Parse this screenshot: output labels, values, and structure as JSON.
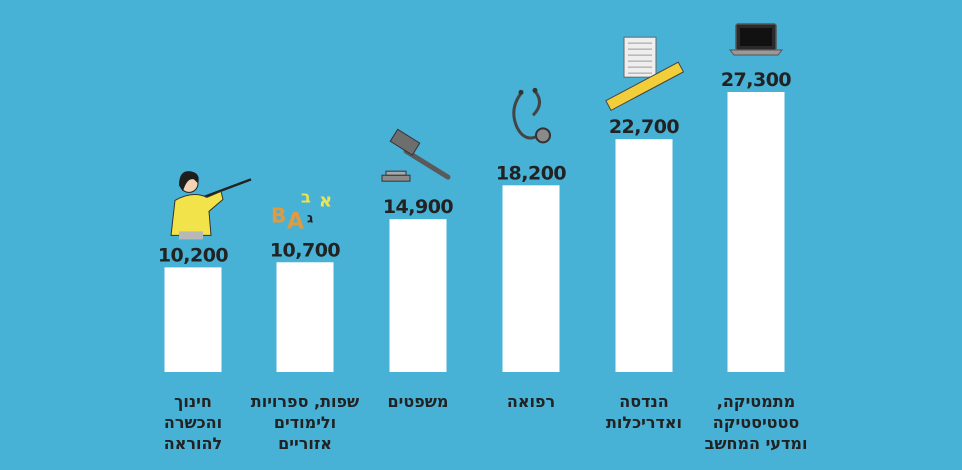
{
  "colors": {
    "background": "#48b1d6",
    "bar": "#ffffff",
    "text": "#222222"
  },
  "chart_data": {
    "type": "bar",
    "categories": [
      [
        "חינוך",
        "והכשרה",
        "להוראה"
      ],
      [
        "שפות, ספרויות",
        "ולימודים",
        "אזוריים"
      ],
      [
        "משפטים"
      ],
      [
        "רפואה"
      ],
      [
        "הנדסה",
        "ואדריכלות"
      ],
      [
        "מתמטיקה,",
        "סטטיסטיקה",
        "ומדעי המחשב"
      ]
    ],
    "values": [
      10200,
      10700,
      14900,
      18200,
      22700,
      27300
    ],
    "value_labels": [
      "10,200",
      "10,700",
      "14,900",
      "18,200",
      "22,700",
      "27,300"
    ],
    "icons": [
      "teacher-icon",
      "letters-icon",
      "gavel-icon",
      "stethoscope-icon",
      "ruler-blueprint-icon",
      "laptop-icon"
    ],
    "ylim": [
      0,
      27300
    ],
    "grid": false,
    "legend": "none"
  }
}
